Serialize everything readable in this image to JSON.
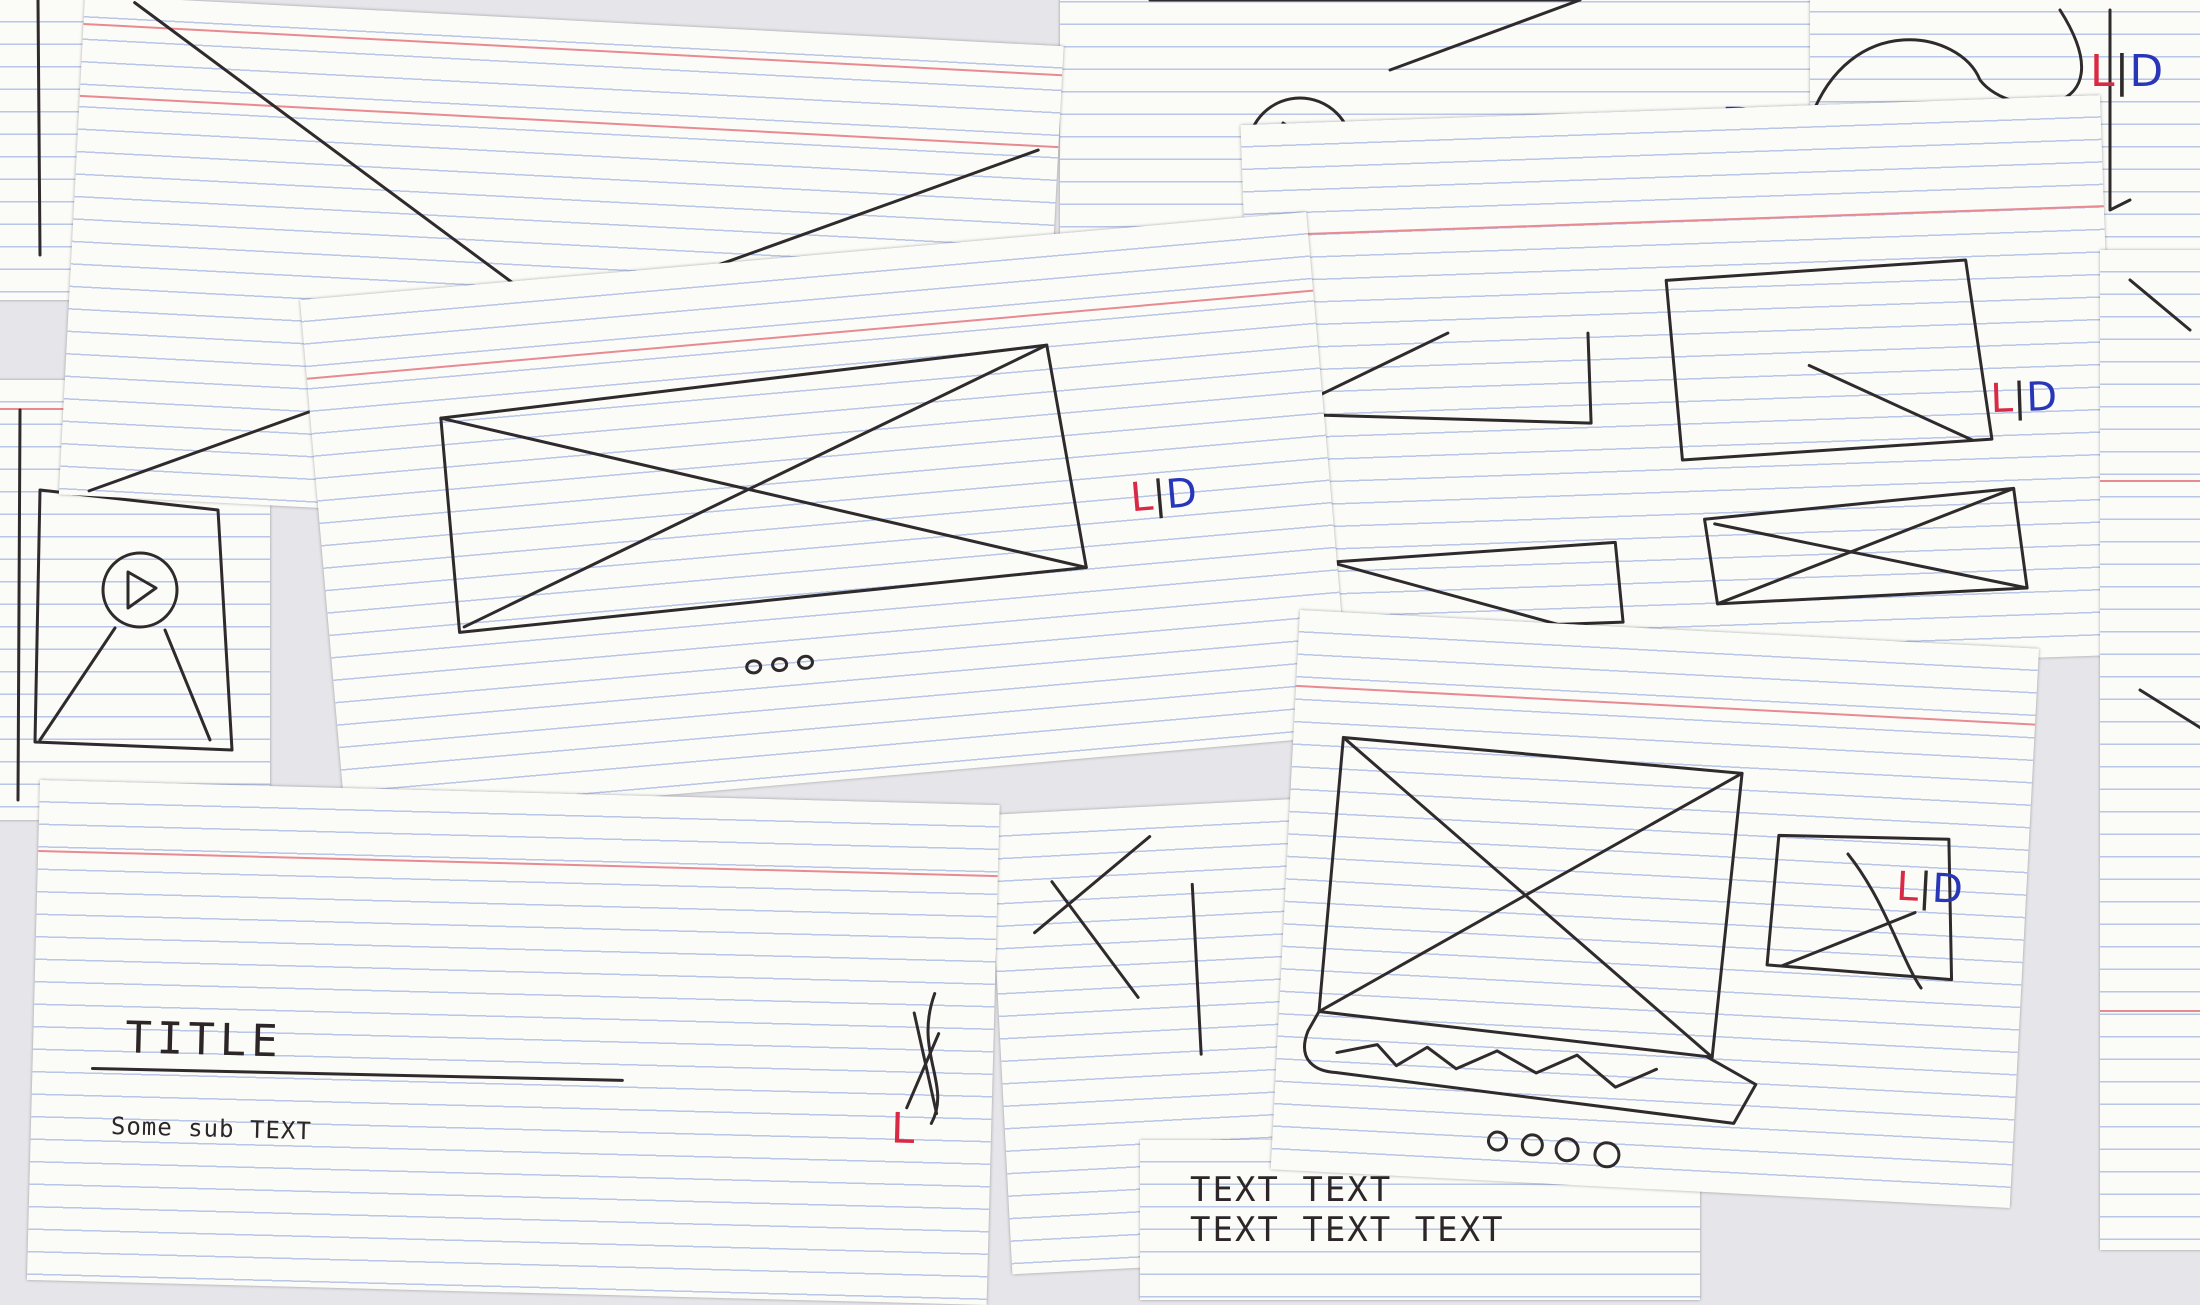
{
  "colors": {
    "card": "#fbfbf8",
    "rule_blue": "#b9c6e6",
    "rule_red": "#e88a92",
    "ink": "#2f2a2c",
    "red_ink": "#d82a45",
    "blue_ink": "#2837b8"
  },
  "labels": {
    "l": "L",
    "sep": "|",
    "d": "D"
  },
  "title_card": {
    "title": "TITLE",
    "subtitle": "Some sub TEXT"
  },
  "text_card": {
    "line1": "TEXT TEXT",
    "line2": "TEXT TEXT TEXT"
  },
  "icons": [
    "play-icon",
    "image-placeholder-icon",
    "pagination-dots-icon"
  ]
}
